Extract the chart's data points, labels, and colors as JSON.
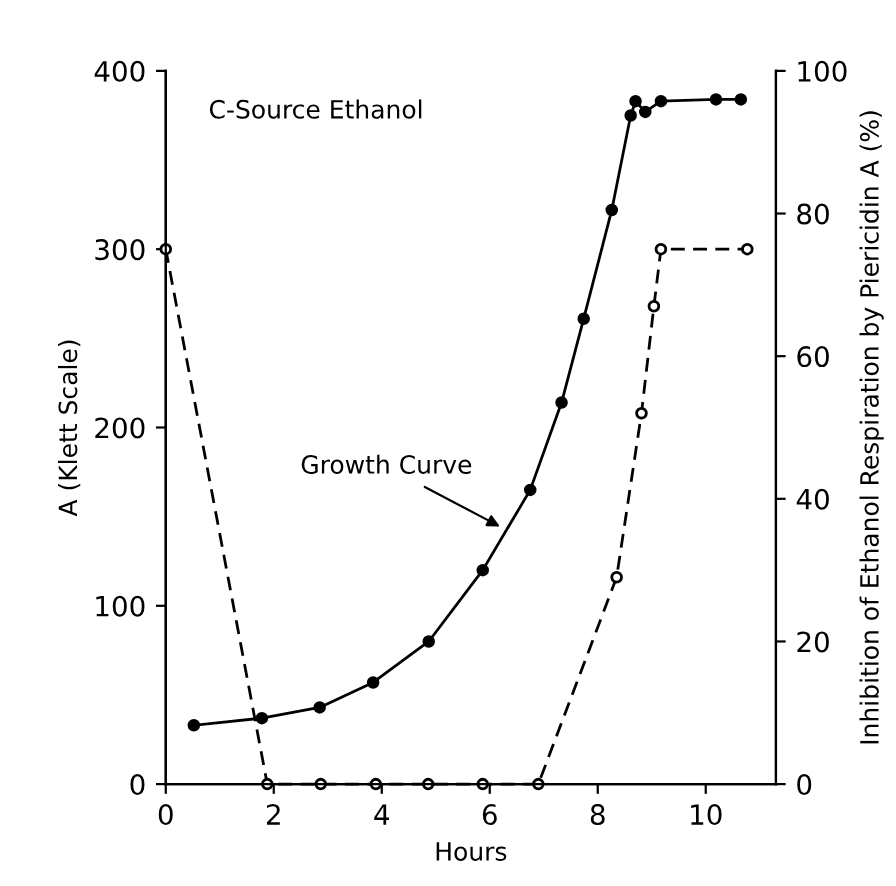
{
  "chart_data": {
    "type": "line",
    "xlabel": "Hours",
    "ylabel": "A (Klett Scale)",
    "y2label": "Inhibition of Ethanol Respiration by Piericidin A (%)",
    "annotations": [
      "C-Source Ethanol",
      {
        "text": "Growth Curve",
        "x": 6.28,
        "y": 143
      }
    ],
    "series": [
      {
        "color": "#000000",
        "marker": "circle",
        "line_style": "solid",
        "x": [
          0.52,
          1.78,
          2.85,
          3.84,
          4.87,
          5.87,
          6.75,
          7.33,
          7.74,
          8.26,
          8.61,
          8.7,
          8.88,
          9.17,
          10.19,
          10.65
        ],
        "values": [
          33,
          37,
          43,
          57,
          80,
          120,
          165,
          214,
          261,
          322,
          375,
          383,
          377,
          383,
          384,
          384
        ]
      },
      {
        "color": "#000000",
        "marker": "circle",
        "line_style": "dashed",
        "axis": "y2",
        "x": [
          0,
          1.88,
          2.87,
          3.89,
          4.86,
          5.87,
          6.9,
          8.35,
          8.81,
          9.04,
          9.17,
          10.77
        ],
        "values": [
          75,
          0,
          0,
          0,
          0,
          0,
          0,
          29,
          52,
          67,
          75,
          75
        ]
      }
    ],
    "xlim": [
      0,
      11.3
    ],
    "xticks": [
      0,
      2,
      4,
      6,
      8,
      10
    ],
    "ylim": [
      0,
      400
    ],
    "yticks": [
      0,
      100,
      200,
      300,
      400
    ],
    "y2lim": [
      0,
      100
    ],
    "y2ticks": [
      0,
      20,
      40,
      60,
      80,
      100
    ],
    "grid": false,
    "legend": false
  }
}
